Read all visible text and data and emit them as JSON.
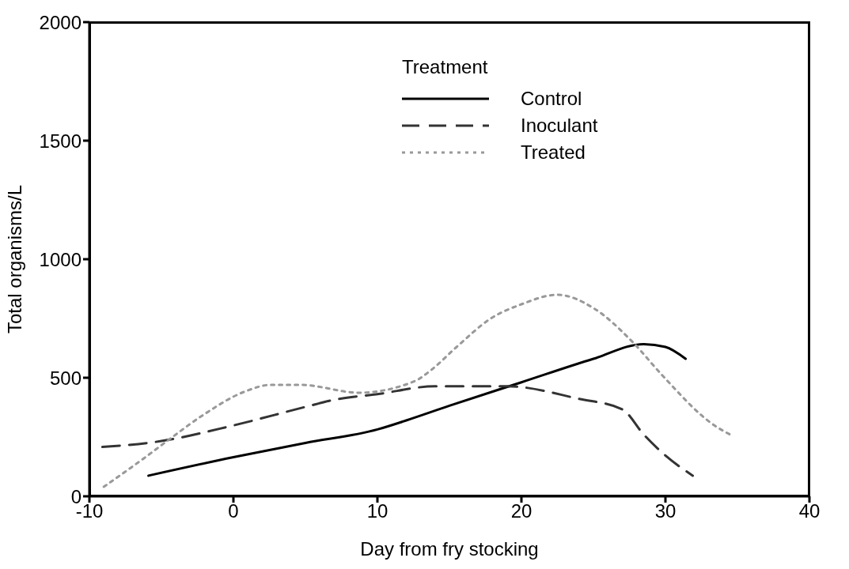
{
  "chart_data": {
    "type": "line",
    "xlabel": "Day from fry stocking",
    "ylabel": "Total organisms/L",
    "legend_title": "Treatment",
    "legend": "top",
    "marker": "none",
    "xlim": [
      -10,
      40
    ],
    "xticks": [
      -10,
      0,
      10,
      20,
      30,
      40
    ],
    "ylim": [
      0,
      2000
    ],
    "yticks": [
      0,
      500,
      1000,
      1500,
      2000
    ],
    "series": [
      {
        "name": "Control",
        "color": "#000000",
        "line_style": "solid",
        "x": [
          -5.9,
          0,
          5,
          10,
          12,
          15,
          20,
          25,
          28.5,
          30,
          31.4
        ],
        "values": [
          87,
          165,
          225,
          282,
          320,
          382,
          481,
          580,
          642,
          630,
          580
        ]
      },
      {
        "name": "Inoculant",
        "color": "#333333",
        "line_style": "dashed",
        "x": [
          -9.1,
          -5,
          0,
          5,
          7,
          10,
          14,
          19,
          24,
          27,
          28.5,
          30,
          31.9
        ],
        "values": [
          208,
          233,
          299,
          377,
          407,
          431,
          464,
          464,
          411,
          367,
          260,
          172,
          87
        ]
      },
      {
        "name": "Treated",
        "color": "#999999",
        "line_style": "dotted",
        "x": [
          -9,
          -6.2,
          -4.5,
          -2.1,
          0.8,
          2.6,
          4.7,
          8.7,
          12.6,
          13.8,
          15.5,
          17.9,
          20,
          22.5,
          25.1,
          27.7,
          29.8,
          33.4,
          34.5
        ],
        "values": [
          40,
          161,
          238,
          343,
          442,
          470,
          470,
          437,
          486,
          536,
          630,
          751,
          810,
          850,
          790,
          652,
          509,
          299,
          260
        ]
      }
    ]
  }
}
